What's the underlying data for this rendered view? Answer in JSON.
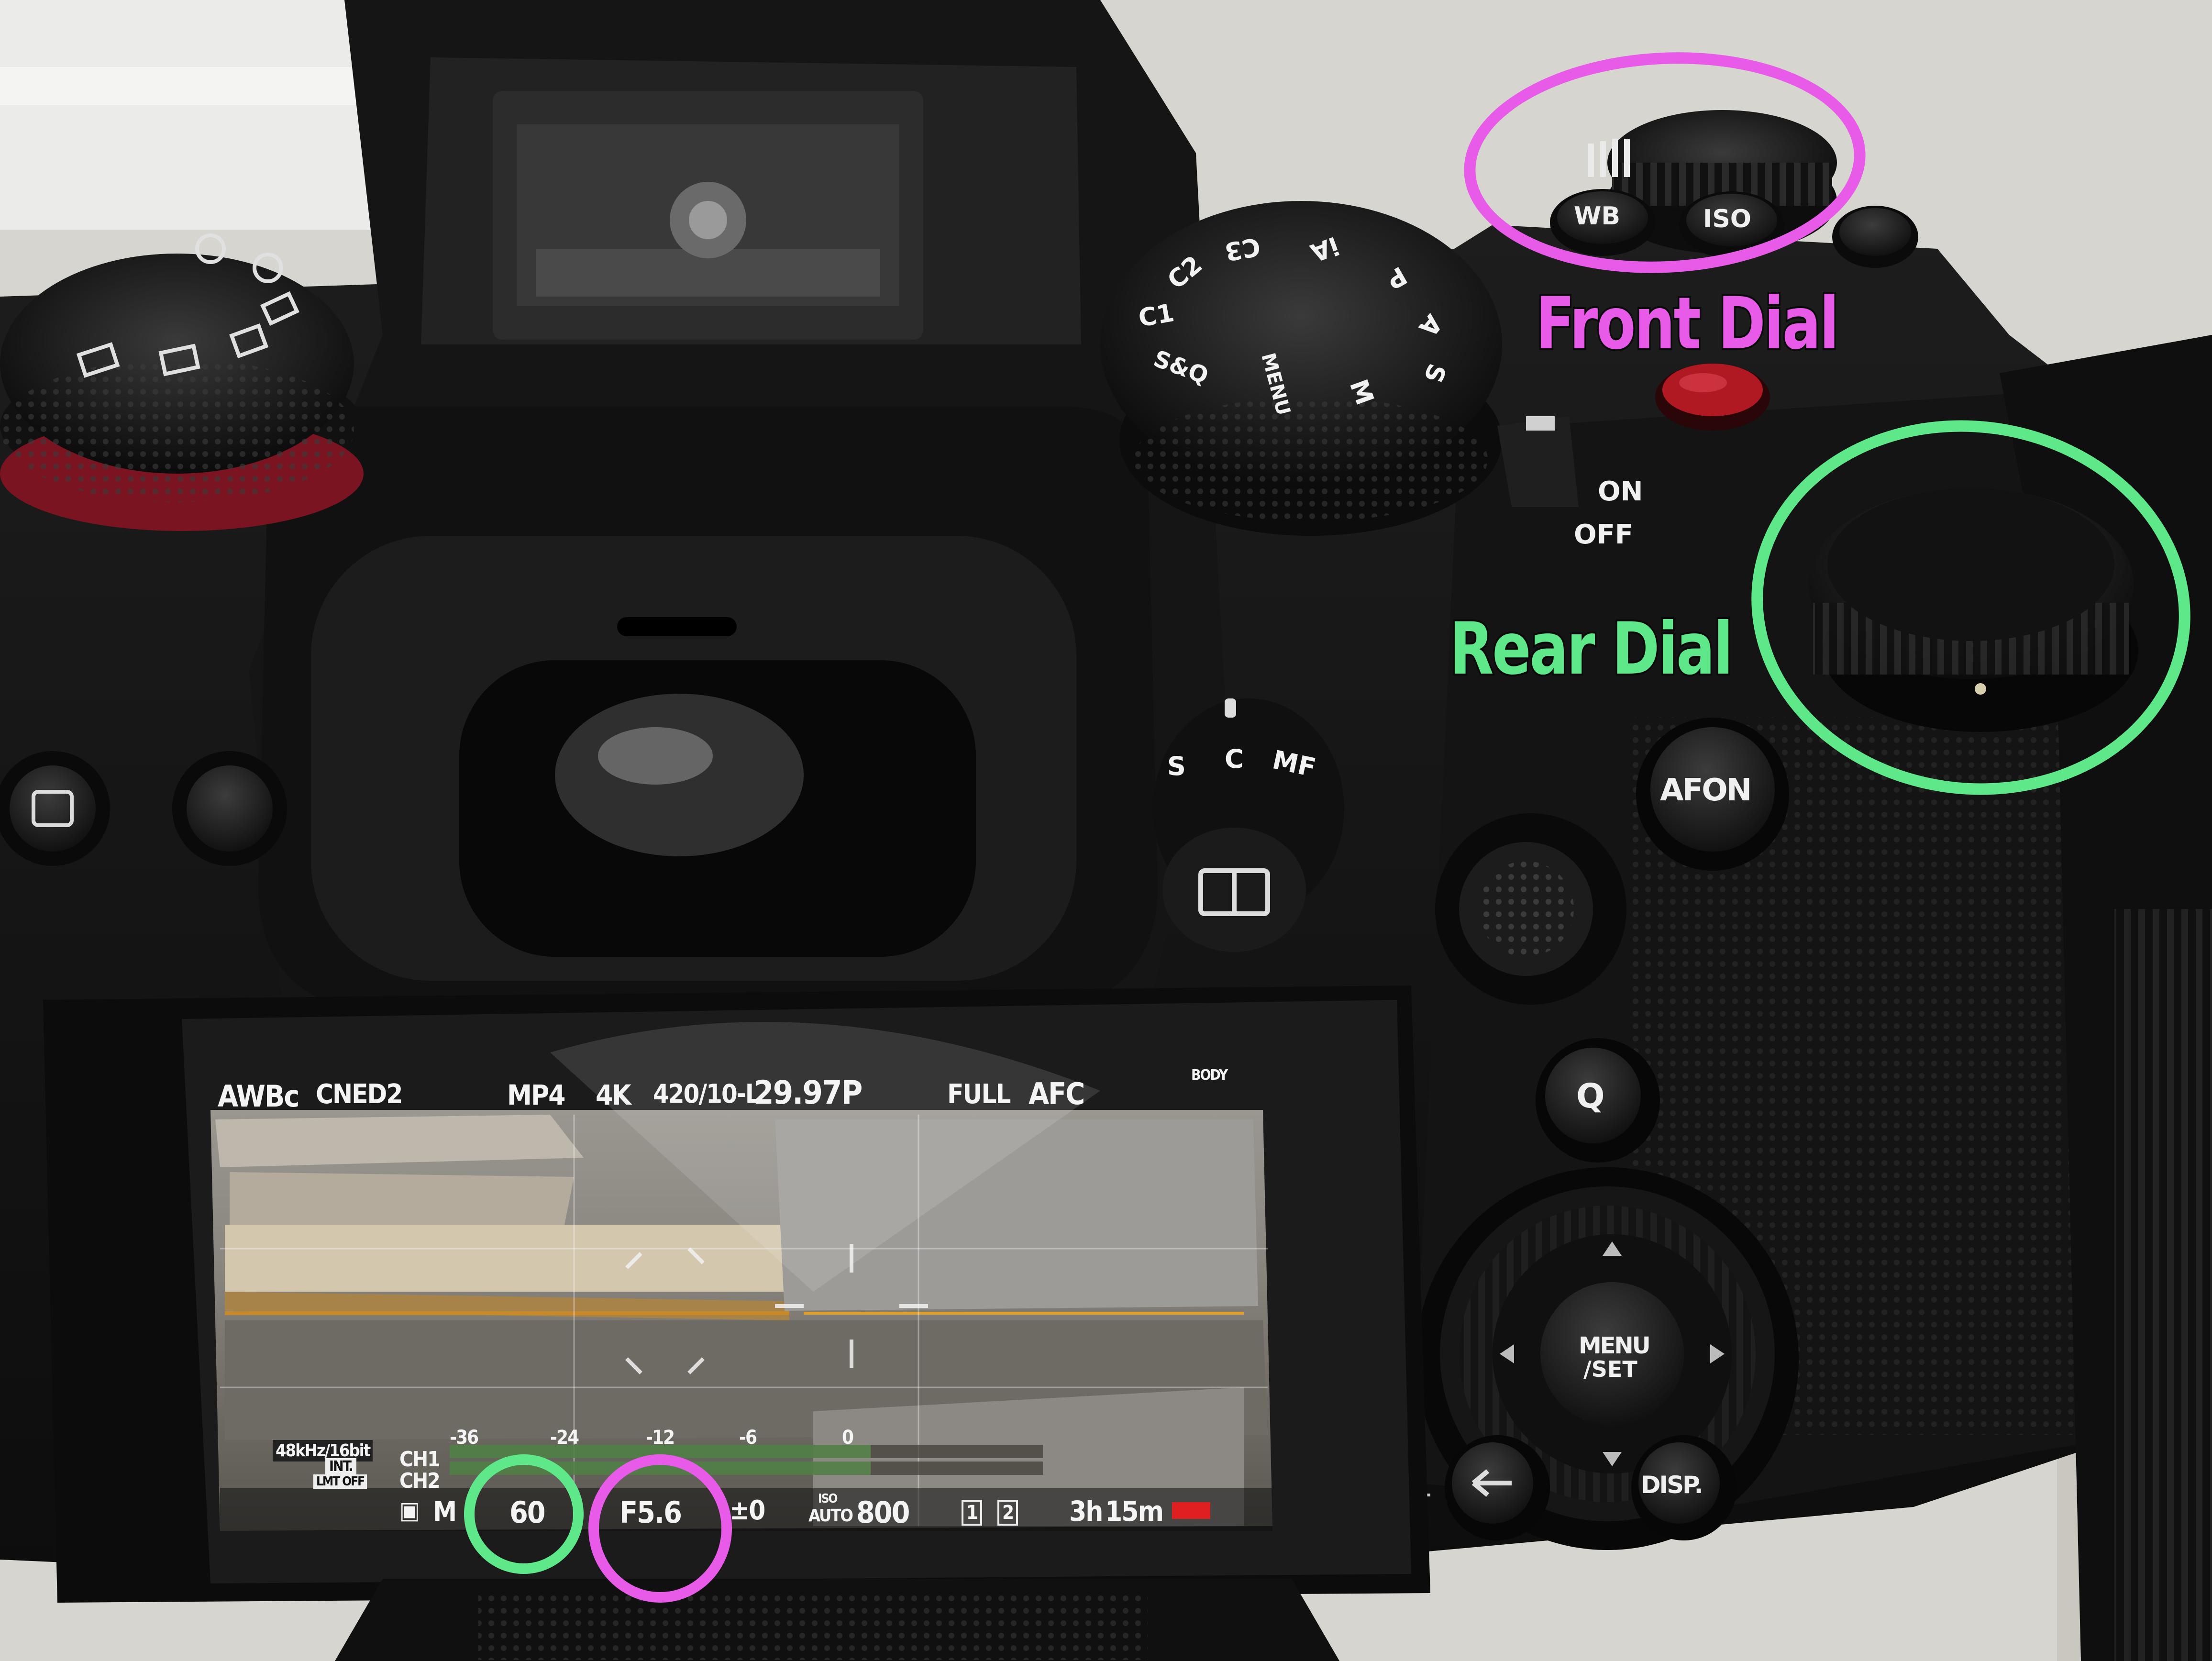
{
  "annotations": {
    "front_dial": {
      "label": "Front Dial",
      "color": "#e85ae8"
    },
    "rear_dial": {
      "label": "Rear Dial",
      "color": "#5ee88a"
    }
  },
  "camera": {
    "buttons": {
      "wb": "WB",
      "iso": "ISO",
      "afon": "AFON",
      "q": "Q",
      "menu": "MENU",
      "set": "/SET",
      "disp": "DISP."
    },
    "power_switch": {
      "on": "ON",
      "off": "OFF"
    },
    "mode_dial": [
      "C1",
      "C2",
      "C3",
      "iA",
      "P",
      "A",
      "S",
      "M",
      "MENU",
      "S&Q"
    ],
    "focus_lever": [
      "S",
      "C",
      "MF"
    ]
  },
  "lcd": {
    "top_bar": {
      "white_balance": "AWBc",
      "photo_style": "CNED2",
      "file_format": "MP4",
      "resolution": "4K",
      "sampling": "420/10-L",
      "frame_rate": "29.97P",
      "sensor_mode": "FULL",
      "af_mode": "AFC",
      "stabilizer": "BODY"
    },
    "audio": {
      "format": "48kHz/16bit",
      "input": "INT.",
      "limiter": "LMT OFF",
      "ch1": "CH1",
      "ch2": "CH2",
      "scale": [
        "-36",
        "-24",
        "-12",
        "-6",
        "0"
      ]
    },
    "bottom_bar": {
      "mode": "M",
      "shutter": "60",
      "aperture": "F5.6",
      "exposure_comp": "±0",
      "iso_label": "ISO",
      "iso_mode": "AUTO",
      "iso_value": "800",
      "card_slots": [
        "1",
        "2"
      ],
      "remaining_hours": "3h",
      "remaining_minutes": "15m"
    }
  }
}
